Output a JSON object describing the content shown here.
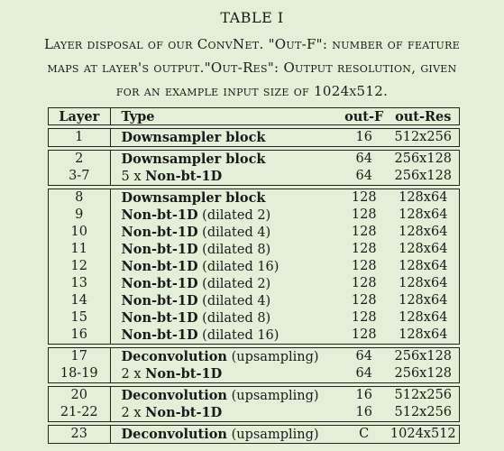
{
  "table_label": "TABLE I",
  "caption": [
    "Layer disposal of our ConvNet. \"Out-F\": number of feature",
    "maps at layer's output.\"Out-Res\": Output resolution, given",
    "for an example input size of 1024x512."
  ],
  "columns": [
    "Layer",
    "Type",
    "out-F",
    "out-Res"
  ],
  "groups": [
    [
      {
        "layer": "1",
        "prefix": "",
        "bold": "Downsampler block",
        "suffix": "",
        "outf": "16",
        "outres": "512x256"
      }
    ],
    [
      {
        "layer": "2",
        "prefix": "",
        "bold": "Downsampler block",
        "suffix": "",
        "outf": "64",
        "outres": "256x128"
      },
      {
        "layer": "3-7",
        "prefix": "5 x ",
        "bold": "Non-bt-1D",
        "suffix": "",
        "outf": "64",
        "outres": "256x128"
      }
    ],
    [
      {
        "layer": "8",
        "prefix": "",
        "bold": "Downsampler block",
        "suffix": "",
        "outf": "128",
        "outres": "128x64"
      },
      {
        "layer": "9",
        "prefix": "",
        "bold": "Non-bt-1D",
        "suffix": " (dilated 2)",
        "outf": "128",
        "outres": "128x64"
      },
      {
        "layer": "10",
        "prefix": "",
        "bold": "Non-bt-1D",
        "suffix": " (dilated 4)",
        "outf": "128",
        "outres": "128x64"
      },
      {
        "layer": "11",
        "prefix": "",
        "bold": "Non-bt-1D",
        "suffix": " (dilated 8)",
        "outf": "128",
        "outres": "128x64"
      },
      {
        "layer": "12",
        "prefix": "",
        "bold": "Non-bt-1D",
        "suffix": " (dilated 16)",
        "outf": "128",
        "outres": "128x64"
      },
      {
        "layer": "13",
        "prefix": "",
        "bold": "Non-bt-1D",
        "suffix": " (dilated 2)",
        "outf": "128",
        "outres": "128x64"
      },
      {
        "layer": "14",
        "prefix": "",
        "bold": "Non-bt-1D",
        "suffix": " (dilated 4)",
        "outf": "128",
        "outres": "128x64"
      },
      {
        "layer": "15",
        "prefix": "",
        "bold": "Non-bt-1D",
        "suffix": " (dilated 8)",
        "outf": "128",
        "outres": "128x64"
      },
      {
        "layer": "16",
        "prefix": "",
        "bold": "Non-bt-1D",
        "suffix": " (dilated 16)",
        "outf": "128",
        "outres": "128x64"
      }
    ],
    [
      {
        "layer": "17",
        "prefix": "",
        "bold": "Deconvolution",
        "suffix": " (upsampling)",
        "outf": "64",
        "outres": "256x128"
      },
      {
        "layer": "18-19",
        "prefix": "2 x ",
        "bold": "Non-bt-1D",
        "suffix": "",
        "outf": "64",
        "outres": "256x128"
      }
    ],
    [
      {
        "layer": "20",
        "prefix": "",
        "bold": "Deconvolution",
        "suffix": " (upsampling)",
        "outf": "16",
        "outres": "512x256"
      },
      {
        "layer": "21-22",
        "prefix": "2 x ",
        "bold": "Non-bt-1D",
        "suffix": "",
        "outf": "16",
        "outres": "512x256"
      }
    ],
    [
      {
        "layer": "23",
        "prefix": "",
        "bold": "Deconvolution",
        "suffix": " (upsampling)",
        "outf": "C",
        "outres": "1024x512"
      }
    ]
  ]
}
